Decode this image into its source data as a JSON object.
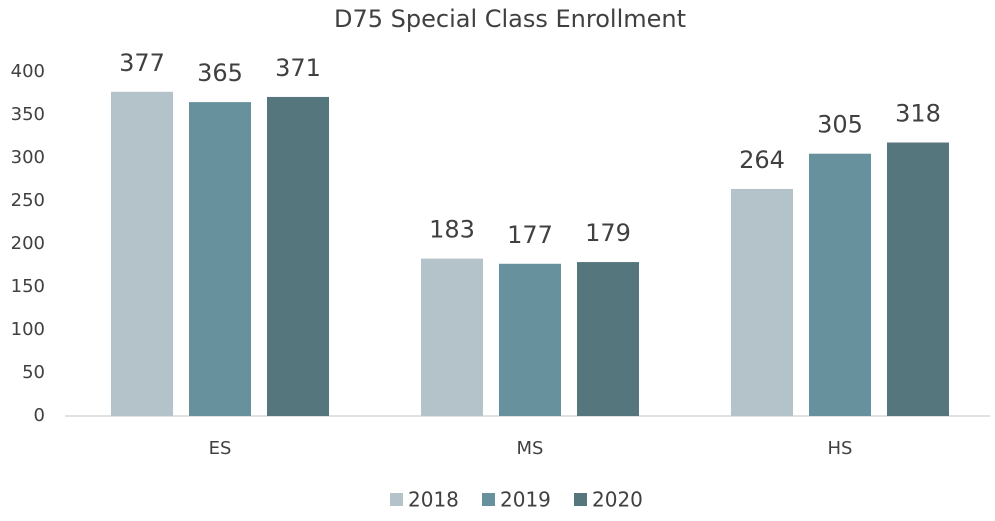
{
  "chart_data": {
    "type": "bar",
    "title": "D75 Special Class Enrollment",
    "categories": [
      "ES",
      "MS",
      "HS"
    ],
    "series": [
      {
        "name": "2018",
        "color": "#b4c3c9",
        "values": [
          377,
          183,
          264
        ]
      },
      {
        "name": "2019",
        "color": "#67919c",
        "values": [
          365,
          177,
          305
        ]
      },
      {
        "name": "2020",
        "color": "#56767e",
        "values": [
          371,
          179,
          318
        ]
      }
    ],
    "ylim": [
      0,
      400
    ],
    "yticks": [
      0,
      50,
      100,
      150,
      200,
      250,
      300,
      350,
      400
    ],
    "grid": false,
    "legend": "bottom"
  }
}
